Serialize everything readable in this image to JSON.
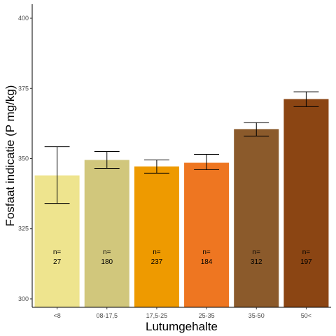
{
  "chart_data": {
    "type": "bar",
    "xlabel": "Lutumgehalte",
    "ylabel": "Fosfaat indicatie (P mg/kg)",
    "ylim": [
      297,
      405
    ],
    "yticks": [
      300,
      325,
      350,
      375,
      400
    ],
    "grid": false,
    "categories": [
      "<8",
      "08-17,5",
      "17,5-25",
      "25-35",
      "35-50",
      "50<"
    ],
    "values": [
      344,
      349.5,
      347.2,
      348.5,
      360.5,
      371.2
    ],
    "error_low": [
      334,
      346.5,
      344.8,
      346,
      358,
      368.5
    ],
    "error_high": [
      354.2,
      352.5,
      349.5,
      351.5,
      362.8,
      373.8
    ],
    "n_prefix": "n=",
    "n": [
      "27",
      "180",
      "237",
      "184",
      "312",
      "197"
    ],
    "colors": [
      "#EEE48E",
      "#D1C77C",
      "#EE9A00",
      "#EE7621",
      "#8B5A2B",
      "#8B4513"
    ]
  }
}
